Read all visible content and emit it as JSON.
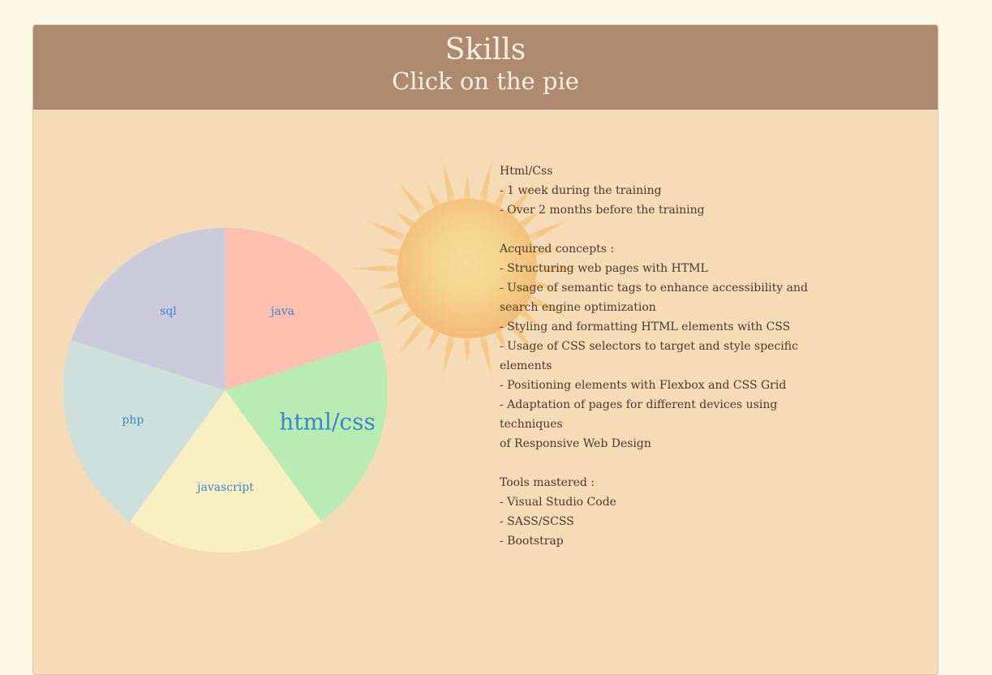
{
  "header": {
    "title": "Skills",
    "subtitle": "Click on the pie"
  },
  "pie": {
    "slices": [
      {
        "label": "java",
        "color": "#fcbfb0",
        "value": 1
      },
      {
        "label": "html/css",
        "color": "#b9ecb3",
        "value": 1,
        "selected": true
      },
      {
        "label": "javascript",
        "color": "#f8f0c3",
        "value": 1
      },
      {
        "label": "php",
        "color": "#cde0dc",
        "value": 1
      },
      {
        "label": "sql",
        "color": "#cccbdc",
        "value": 1
      }
    ],
    "label_color": "#3a86c8"
  },
  "details": {
    "lines": [
      "Html/Css",
      "- 1 week during the training",
      "- Over 2 months before the training",
      "",
      "Acquired concepts :",
      "- Structuring web pages with HTML",
      "- Usage of semantic tags to enhance accessibility and",
      "search engine optimization",
      "- Styling and formatting HTML elements with CSS",
      "- Usage of CSS selectors to target and style specific elements",
      "- Positioning elements with Flexbox and CSS Grid",
      "- Adaptation of pages for different devices using techniques",
      "of Responsive Web Design",
      "",
      "Tools mastered :",
      "- Visual Studio Code",
      "- SASS/SCSS",
      "- Bootstrap"
    ]
  },
  "decor": {
    "sun_icon": "sun-icon"
  }
}
